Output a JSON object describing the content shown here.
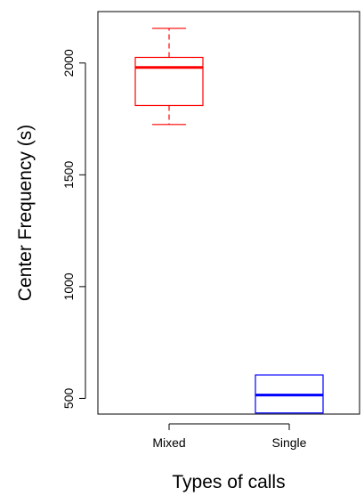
{
  "chart_data": {
    "type": "box",
    "title": "",
    "xlabel": "Types of calls",
    "ylabel": "Center Frequency (s)",
    "ylim": [
      430,
      2230
    ],
    "yticks": [
      500,
      1000,
      1500,
      2000
    ],
    "grid": false,
    "legend": "none",
    "categories": [
      "Mixed",
      "Single"
    ],
    "boxes": [
      {
        "category": "Mixed",
        "min": 1725,
        "q1": 1810,
        "median": 1980,
        "q3": 2025,
        "max": 2155,
        "color": "#ff0000"
      },
      {
        "category": "Single",
        "min": 435,
        "q1": 435,
        "median": 515,
        "q3": 605,
        "max": 605,
        "color": "#0000ff"
      }
    ]
  }
}
